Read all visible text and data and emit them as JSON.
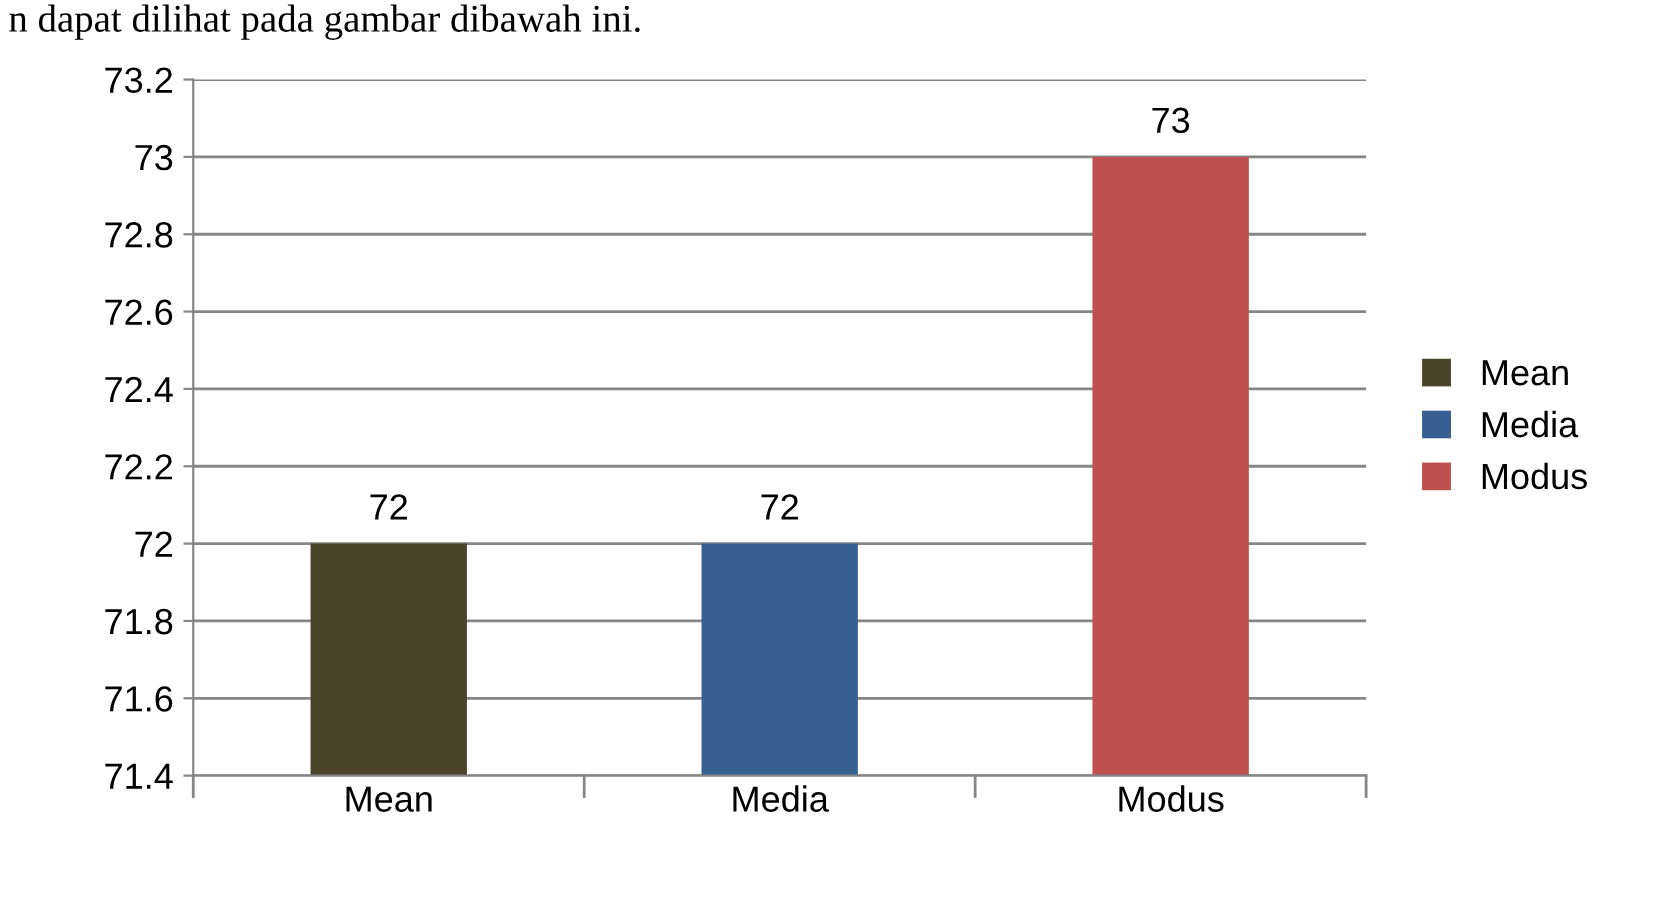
{
  "chart_data": {
    "type": "bar",
    "categories": [
      "Mean",
      "Media",
      "Modus"
    ],
    "series": [
      {
        "name": "Mean",
        "color": "#4a452a",
        "values": [
          72,
          null,
          null
        ]
      },
      {
        "name": "Media",
        "color": "#376092",
        "values": [
          null,
          72,
          null
        ]
      },
      {
        "name": "Modus",
        "color": "#c0504d",
        "values": [
          null,
          null,
          73
        ]
      }
    ],
    "ylim": [
      71.4,
      73.2
    ],
    "yticks": [
      71.4,
      71.6,
      71.8,
      72,
      72.2,
      72.4,
      72.6,
      72.8,
      73,
      73.2
    ],
    "grid": "y",
    "legend": "right",
    "data_labels": true,
    "annotations": [
      "n dapat dilihat pada gambar dibawah ini."
    ]
  }
}
